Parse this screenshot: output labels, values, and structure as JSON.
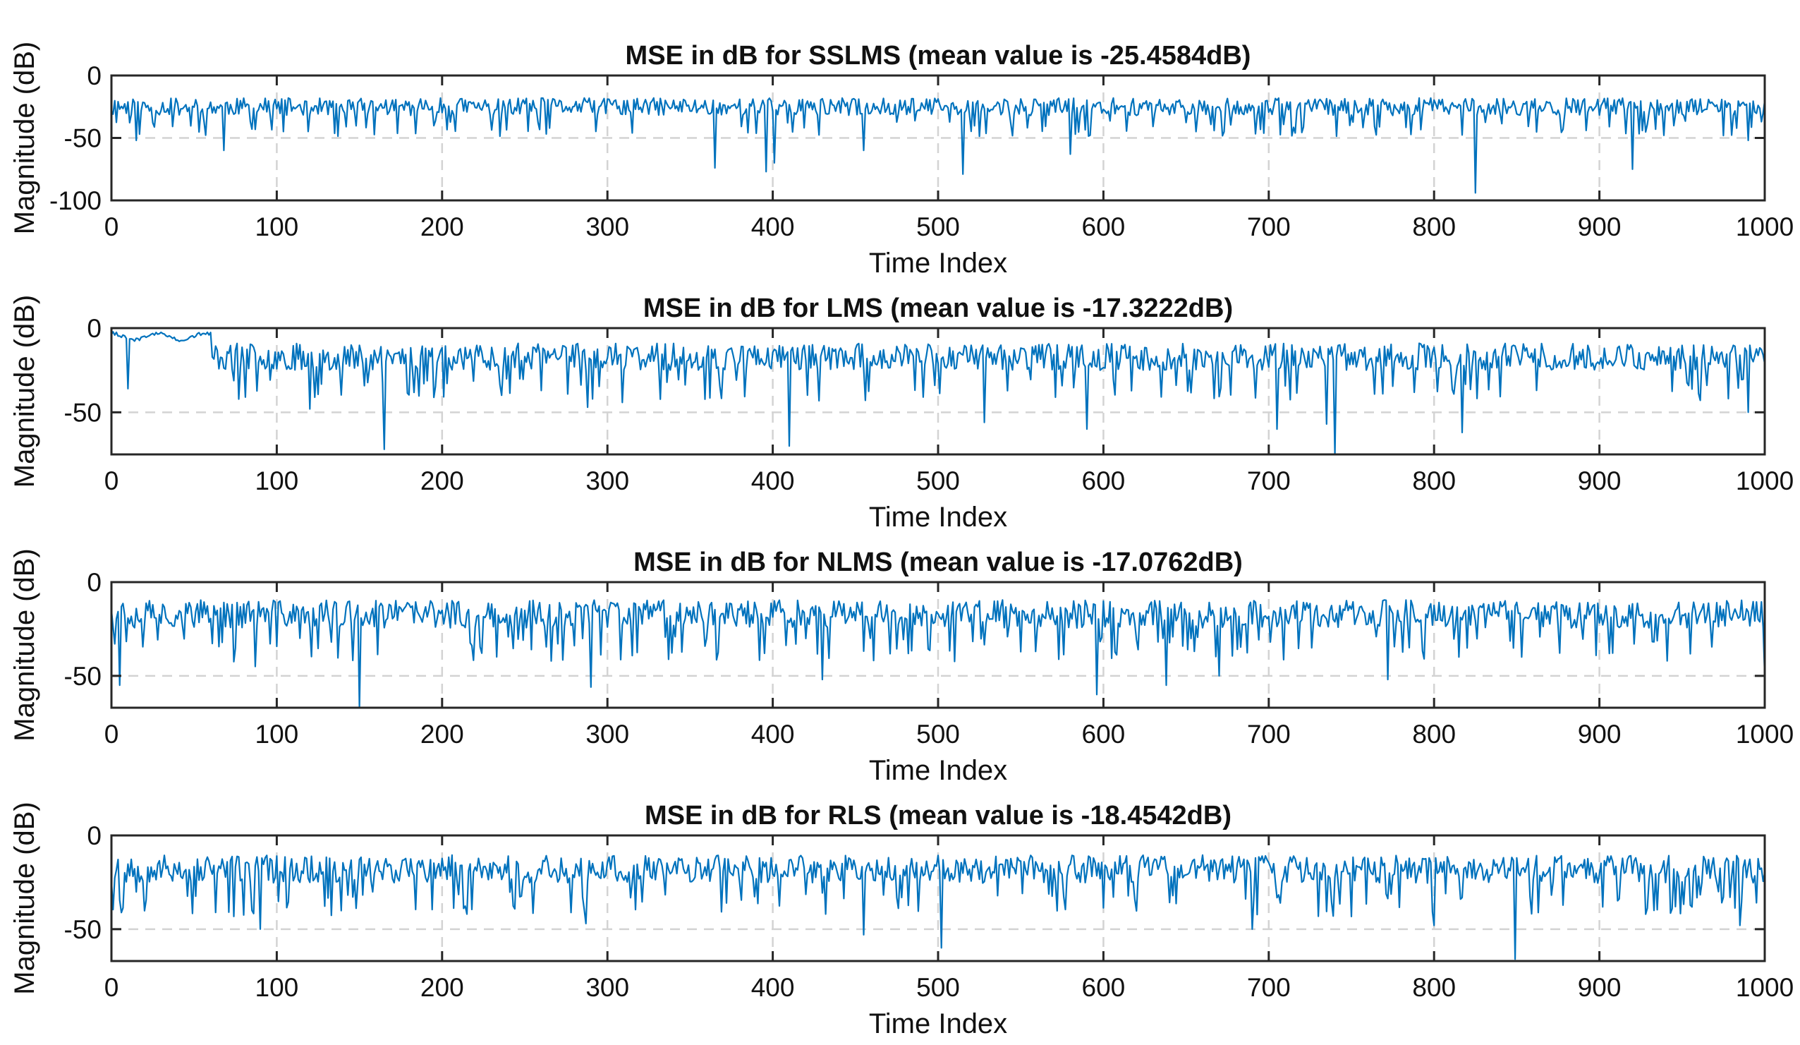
{
  "figure": {
    "background": "#ffffff",
    "line_color": "#0072BD",
    "grid_color": "#d3d3d3",
    "axis_color": "#262626"
  },
  "chart_data": [
    {
      "type": "line",
      "title": "MSE in dB for SSLMS (mean value is -25.4584dB)",
      "xlabel": "Time Index",
      "ylabel": "Magnitude (dB)",
      "xlim": [
        0,
        1000
      ],
      "ylim": [
        -100,
        0
      ],
      "xticks": [
        0,
        100,
        200,
        300,
        400,
        500,
        600,
        700,
        800,
        900,
        1000
      ],
      "yticks": [
        0,
        -50,
        -100
      ],
      "grid": "dashed",
      "series": [
        {
          "name": "SSLMS",
          "mean": -25.4584,
          "base": -25,
          "spread": 14,
          "seed": 11,
          "dips": [
            [
              15,
              -52
            ],
            [
              68,
              -60
            ],
            [
              365,
              -74
            ],
            [
              396,
              -77
            ],
            [
              401,
              -70
            ],
            [
              455,
              -60
            ],
            [
              515,
              -79
            ],
            [
              580,
              -63
            ],
            [
              825,
              -94
            ],
            [
              920,
              -75
            ],
            [
              990,
              -52
            ]
          ]
        }
      ]
    },
    {
      "type": "line",
      "title": "MSE in dB for LMS (mean value is -17.3222dB)",
      "xlabel": "Time Index",
      "ylabel": "Magnitude (dB)",
      "xlim": [
        0,
        1000
      ],
      "ylim": [
        -75,
        0
      ],
      "xticks": [
        0,
        100,
        200,
        300,
        400,
        500,
        600,
        700,
        800,
        900,
        1000
      ],
      "yticks": [
        0,
        -50
      ],
      "grid": "dashed",
      "series": [
        {
          "name": "LMS",
          "mean": -17.3222,
          "base": -17,
          "spread": 16,
          "seed": 23,
          "dips": [
            [
              10,
              -36
            ],
            [
              120,
              -48
            ],
            [
              165,
              -72
            ],
            [
              288,
              -47
            ],
            [
              410,
              -70
            ],
            [
              528,
              -56
            ],
            [
              590,
              -60
            ],
            [
              705,
              -60
            ],
            [
              735,
              -57
            ],
            [
              740,
              -75
            ],
            [
              817,
              -62
            ],
            [
              990,
              -50
            ]
          ]
        }
      ]
    },
    {
      "type": "line",
      "title": "MSE in dB for NLMS (mean value is -17.0762dB)",
      "xlabel": "Time Index",
      "ylabel": "Magnitude (dB)",
      "xlim": [
        0,
        1000
      ],
      "ylim": [
        -67,
        0
      ],
      "xticks": [
        0,
        100,
        200,
        300,
        400,
        500,
        600,
        700,
        800,
        900,
        1000
      ],
      "yticks": [
        0,
        -50
      ],
      "grid": "dashed",
      "series": [
        {
          "name": "NLMS",
          "mean": -17.0762,
          "base": -17,
          "spread": 15,
          "seed": 37,
          "dips": [
            [
              5,
              -55
            ],
            [
              87,
              -45
            ],
            [
              150,
              -67
            ],
            [
              290,
              -56
            ],
            [
              430,
              -52
            ],
            [
              596,
              -60
            ],
            [
              638,
              -55
            ],
            [
              670,
              -50
            ],
            [
              772,
              -52
            ],
            [
              1000,
              -50
            ]
          ]
        }
      ]
    },
    {
      "type": "line",
      "title": "MSE in dB for RLS (mean value is -18.4542dB)",
      "xlabel": "Time Index",
      "ylabel": "Magnitude (dB)",
      "xlim": [
        0,
        1000
      ],
      "ylim": [
        -67,
        0
      ],
      "xticks": [
        0,
        100,
        200,
        300,
        400,
        500,
        600,
        700,
        800,
        900,
        1000
      ],
      "yticks": [
        0,
        -50
      ],
      "grid": "dashed",
      "series": [
        {
          "name": "RLS",
          "mean": -18.4542,
          "base": -18,
          "spread": 15,
          "seed": 53,
          "dips": [
            [
              90,
              -50
            ],
            [
              287,
              -47
            ],
            [
              455,
              -53
            ],
            [
              502,
              -60
            ],
            [
              690,
              -50
            ],
            [
              800,
              -48
            ],
            [
              849,
              -66
            ],
            [
              985,
              -48
            ]
          ]
        }
      ]
    }
  ]
}
